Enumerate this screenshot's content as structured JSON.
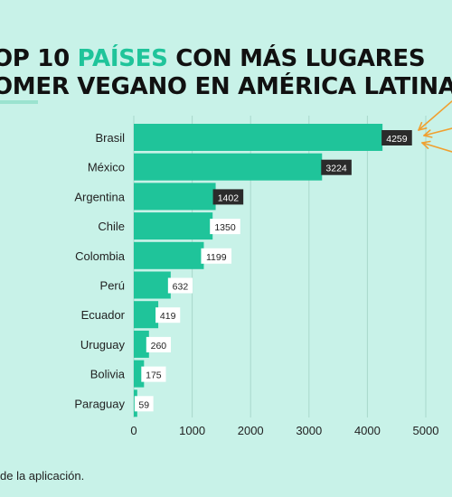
{
  "header": {
    "title_line1_pre": "OP 10 ",
    "title_line1_accent": "PAÍSES",
    "title_line1_post": " CON MÁS LUGARES",
    "title_line2": "OMER VEGANO EN AMÉRICA LATINA"
  },
  "footnote": "de la aplicación.",
  "colors": {
    "bar": "#1fc49a",
    "background": "#c8f2e8",
    "label_dark_bg": "#2b2b2b",
    "label_light_bg": "#ffffff",
    "arrow": "#f0a030"
  },
  "chart_data": {
    "type": "bar",
    "orientation": "horizontal",
    "categories": [
      "Brasil",
      "México",
      "Argentina",
      "Chile",
      "Colombia",
      "Perú",
      "Ecuador",
      "Uruguay",
      "Bolivia",
      "Paraguay"
    ],
    "values": [
      4259,
      3224,
      1402,
      1350,
      1199,
      632,
      419,
      260,
      175,
      59
    ],
    "value_labels": [
      "4259",
      "3224",
      "1402",
      "1350",
      "1199",
      "632",
      "419",
      "260",
      "175",
      "59"
    ],
    "xticks": [
      "0",
      "1000",
      "2000",
      "3000",
      "4000",
      "5000"
    ],
    "xlim": [
      0,
      5000
    ],
    "grid": true,
    "annotation": "arrows pointing at top bar"
  }
}
